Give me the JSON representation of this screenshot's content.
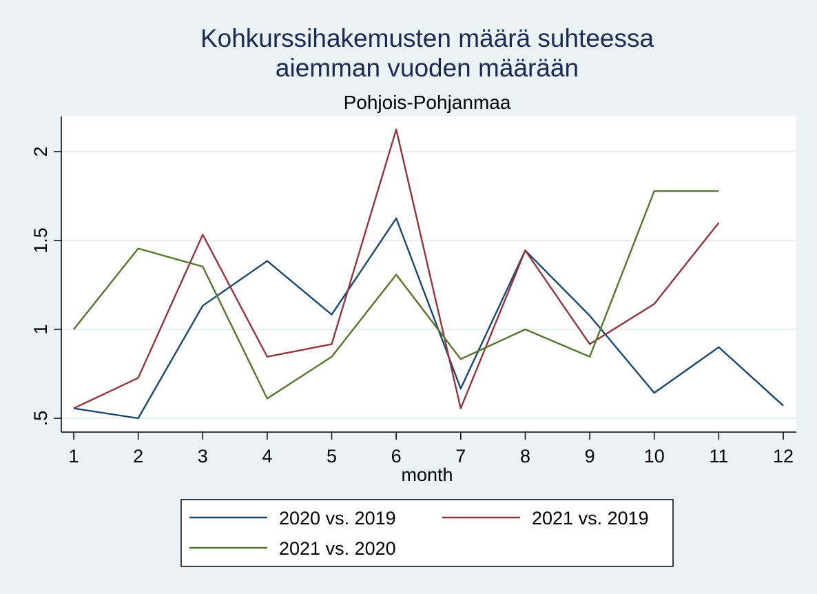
{
  "chart_data": {
    "type": "line",
    "title_lines": [
      "Kohkurssihakemusten määrä suhteessa",
      "aiemman vuoden määrään"
    ],
    "subtitle": "Pohjois-Pohjanmaa",
    "xlabel": "month",
    "ylabel": "",
    "x_ticks": [
      1,
      2,
      3,
      4,
      5,
      6,
      7,
      8,
      9,
      10,
      11,
      12
    ],
    "x_tick_labels": [
      "1",
      "2",
      "3",
      "4",
      "5",
      "6",
      "7",
      "8",
      "9",
      "10",
      "11",
      "12"
    ],
    "y_ticks": [
      0.5,
      1,
      1.5,
      2
    ],
    "y_tick_labels": [
      ".5",
      "1",
      "1.5",
      "2"
    ],
    "xlim": [
      1,
      12
    ],
    "ylim": [
      0.5,
      2.2
    ],
    "grid": "horizontal",
    "legend_position": "bottom",
    "series": [
      {
        "name": "2020 vs. 2019",
        "color": "#1a476f",
        "x": [
          1,
          2,
          3,
          4,
          5,
          6,
          7,
          8,
          9,
          10,
          11,
          12
        ],
        "values": [
          0.556,
          0.5,
          1.133,
          1.385,
          1.083,
          1.625,
          0.667,
          1.444,
          1.077,
          0.643,
          0.9,
          0.571
        ]
      },
      {
        "name": "2021 vs. 2019",
        "color": "#90353b",
        "x": [
          1,
          2,
          3,
          4,
          5,
          6,
          7,
          8,
          9,
          10,
          11
        ],
        "values": [
          0.556,
          0.727,
          1.533,
          0.846,
          0.917,
          2.125,
          0.556,
          1.444,
          0.917,
          1.143,
          1.6
        ]
      },
      {
        "name": "2021 vs. 2020",
        "color": "#55752f",
        "x": [
          1,
          2,
          3,
          4,
          5,
          6,
          7,
          8,
          9,
          10,
          11
        ],
        "values": [
          1.0,
          1.455,
          1.353,
          0.611,
          0.846,
          1.308,
          0.833,
          1.0,
          0.846,
          1.778,
          1.778
        ]
      }
    ]
  }
}
